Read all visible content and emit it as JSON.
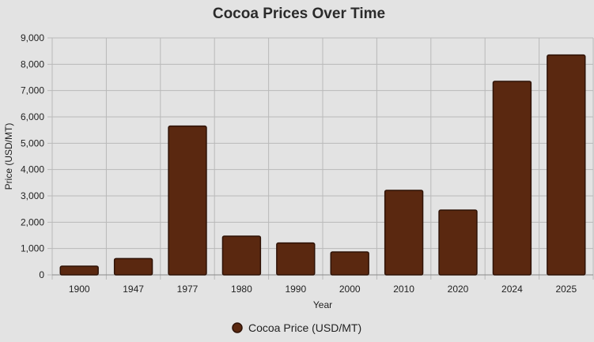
{
  "chart_data": {
    "type": "bar",
    "title": "Cocoa Prices Over Time",
    "xlabel": "Year",
    "ylabel": "Price (USD/MT)",
    "categories": [
      "1900",
      "1947",
      "1977",
      "1980",
      "1990",
      "2000",
      "2010",
      "2020",
      "2024",
      "2025"
    ],
    "series": [
      {
        "name": "Cocoa Price (USD/MT)",
        "values": [
          330,
          620,
          5650,
          1470,
          1210,
          870,
          3210,
          2460,
          7350,
          8350
        ],
        "color": "#5a2810",
        "border_color": "#2e1206"
      }
    ],
    "ylim": [
      0,
      9000
    ],
    "yticks": [
      0,
      1000,
      2000,
      3000,
      4000,
      5000,
      6000,
      7000,
      8000,
      9000
    ],
    "ytick_labels": [
      "0",
      "1,000",
      "2,000",
      "3,000",
      "4,000",
      "5,000",
      "6,000",
      "7,000",
      "8,000",
      "9,000"
    ],
    "grid": true,
    "legend_position": "bottom"
  }
}
